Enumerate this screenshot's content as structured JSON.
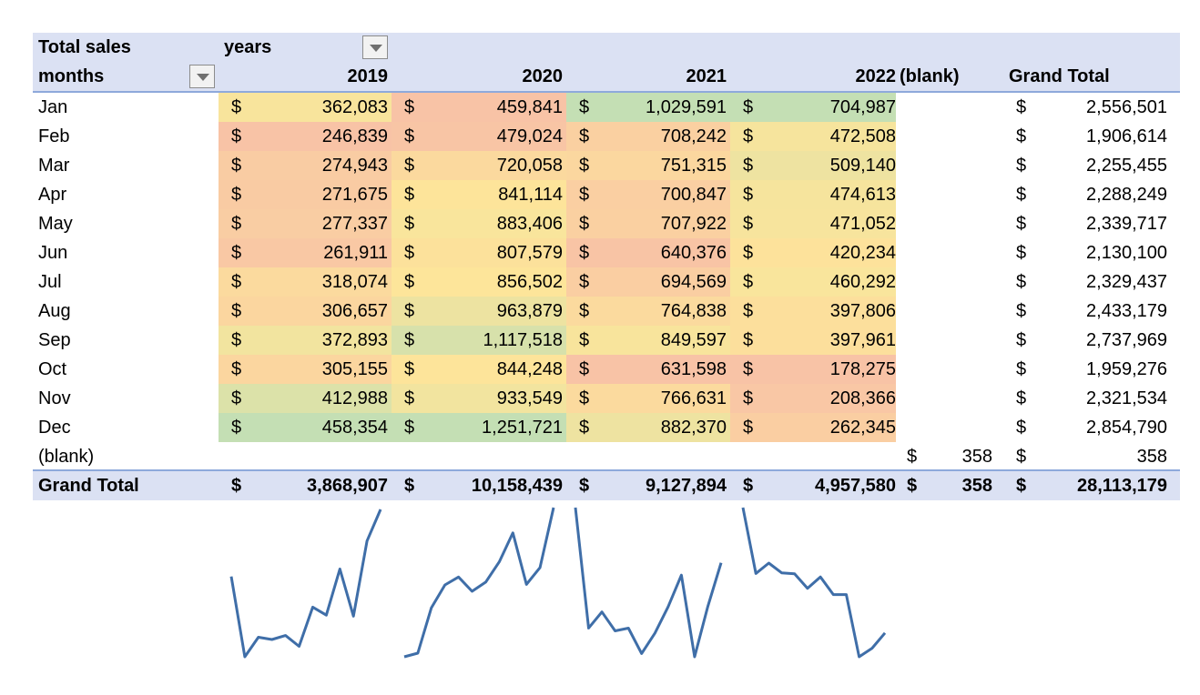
{
  "pivot": {
    "values_label": "Total sales",
    "column_field_label": "years",
    "row_field_label": "months",
    "columns": [
      "2019",
      "2020",
      "2021",
      "2022",
      "(blank)",
      "Grand Total"
    ],
    "currency_symbol": "$",
    "rows": [
      {
        "label": "Jan",
        "values": [
          "362,083",
          "459,841",
          "1,029,591",
          "704,987",
          "",
          "2,556,501"
        ]
      },
      {
        "label": "Feb",
        "values": [
          "246,839",
          "479,024",
          "708,242",
          "472,508",
          "",
          "1,906,614"
        ]
      },
      {
        "label": "Mar",
        "values": [
          "274,943",
          "720,058",
          "751,315",
          "509,140",
          "",
          "2,255,455"
        ]
      },
      {
        "label": "Apr",
        "values": [
          "271,675",
          "841,114",
          "700,847",
          "474,613",
          "",
          "2,288,249"
        ]
      },
      {
        "label": "May",
        "values": [
          "277,337",
          "883,406",
          "707,922",
          "471,052",
          "",
          "2,339,717"
        ]
      },
      {
        "label": "Jun",
        "values": [
          "261,911",
          "807,579",
          "640,376",
          "420,234",
          "",
          "2,130,100"
        ]
      },
      {
        "label": "Jul",
        "values": [
          "318,074",
          "856,502",
          "694,569",
          "460,292",
          "",
          "2,329,437"
        ]
      },
      {
        "label": "Aug",
        "values": [
          "306,657",
          "963,879",
          "764,838",
          "397,806",
          "",
          "2,433,179"
        ]
      },
      {
        "label": "Sep",
        "values": [
          "372,893",
          "1,117,518",
          "849,597",
          "397,961",
          "",
          "2,737,969"
        ]
      },
      {
        "label": "Oct",
        "values": [
          "305,155",
          "844,248",
          "631,598",
          "178,275",
          "",
          "1,959,276"
        ]
      },
      {
        "label": "Nov",
        "values": [
          "412,988",
          "933,549",
          "766,631",
          "208,366",
          "",
          "2,321,534"
        ]
      },
      {
        "label": "Dec",
        "values": [
          "458,354",
          "1,251,721",
          "882,370",
          "262,345",
          "",
          "2,854,790"
        ]
      },
      {
        "label": "(blank)",
        "values": [
          "",
          "",
          "",
          "",
          "358",
          "358"
        ]
      }
    ],
    "grand_total": {
      "label": "Grand Total",
      "values": [
        "3,868,907",
        "10,158,439",
        "9,127,894",
        "4,957,580",
        "358",
        "28,113,179"
      ]
    }
  },
  "colors": {
    "header_bg": "#dbe1f3",
    "header_border": "#8ea9db",
    "sparkline": "#3f6ea8",
    "heat_low": "#f8c3a6",
    "heat_mid": "#fde59a",
    "heat_high": "#c4dfb4"
  },
  "icons": {
    "filter_dropdown": "chevron-down-icon"
  }
}
